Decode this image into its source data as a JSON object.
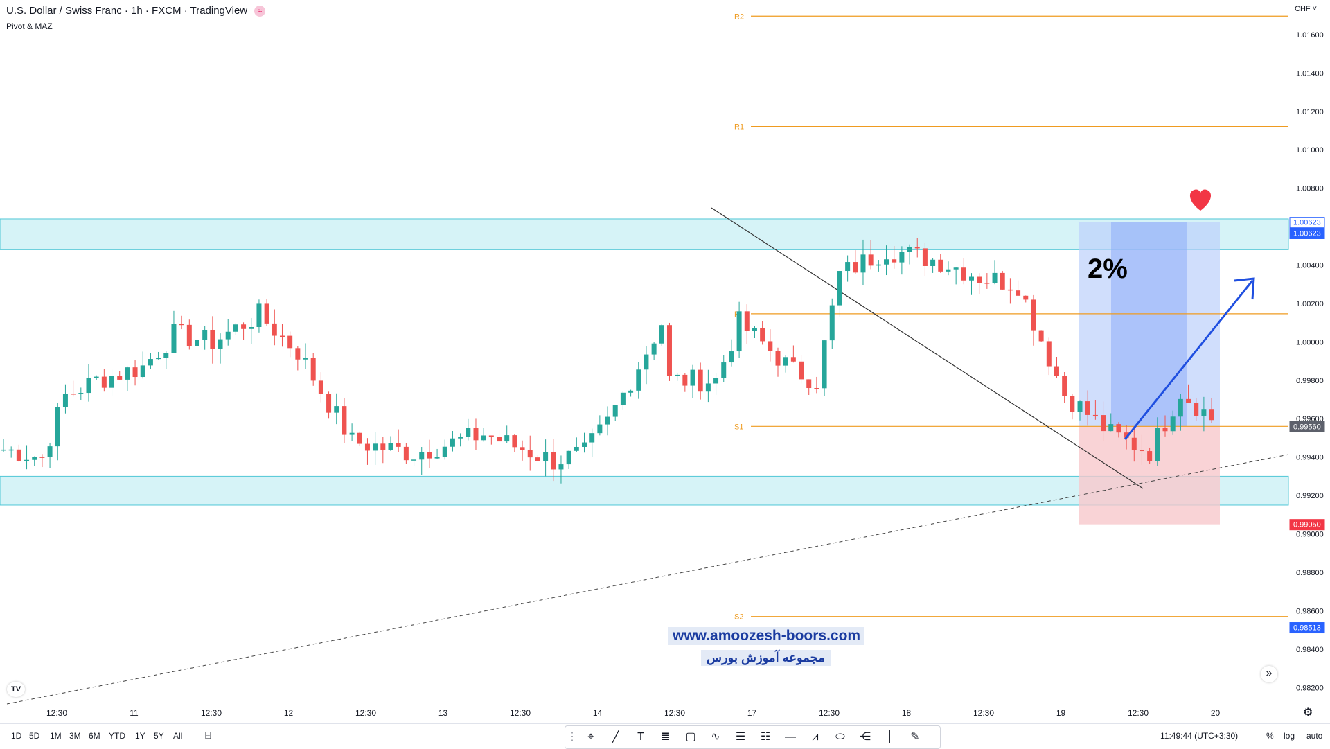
{
  "header": {
    "title": "U.S. Dollar / Swiss Franc · 1h · FXCM · TradingView",
    "indicator": "Pivot & MAZ",
    "currency": "CHF"
  },
  "colors": {
    "up": "#26a69a",
    "down": "#ef5350",
    "pivot": "#ef9b20",
    "zone": "#b2ebf2",
    "target": "#2962ff",
    "stop": "#f23645",
    "arrow": "#1f4fe0"
  },
  "chart_data": {
    "type": "candlestick",
    "y_axis": {
      "min": 0.981,
      "max": 1.0178,
      "ticks": [
        "1.01600",
        "1.01400",
        "1.01200",
        "1.01000",
        "1.00800",
        "1.00600",
        "1.00400",
        "1.00200",
        "1.00000",
        "0.99800",
        "0.99600",
        "0.99400",
        "0.99200",
        "0.99000",
        "0.98800",
        "0.98600",
        "0.98400",
        "0.98200"
      ],
      "scale": "linear"
    },
    "x_axis": {
      "labels": [
        "12:30",
        "11",
        "12:30",
        "12",
        "12:30",
        "13",
        "12:30",
        "14",
        "12:30",
        "17",
        "12:30",
        "18",
        "12:30",
        "19",
        "12:30",
        "20"
      ],
      "bars_visible": 176
    },
    "price_badges": [
      {
        "label": "1.00623",
        "value": 1.00623,
        "style": "outline"
      },
      {
        "label": "1.00623",
        "value": 1.00566,
        "style": "blue"
      },
      {
        "label": "0.99560",
        "value": 0.9956,
        "style": "gray"
      },
      {
        "label": "0.99050",
        "value": 0.9905,
        "style": "red"
      },
      {
        "label": "0.98513",
        "value": 0.98513,
        "style": "blue"
      }
    ],
    "pivots": [
      {
        "label": "R2",
        "value": 1.01696
      },
      {
        "label": "R1",
        "value": 1.01121
      },
      {
        "label": "P",
        "value": 1.00146
      },
      {
        "label": "S1",
        "value": 0.9956
      },
      {
        "label": "S2",
        "value": 0.9857
      }
    ],
    "zones": [
      {
        "from": 1.0048,
        "to": 1.0064
      },
      {
        "from": 0.9915,
        "to": 0.993
      }
    ],
    "position": {
      "entry": 0.9956,
      "target": 1.00623,
      "stop": 0.9905,
      "label": "2%"
    },
    "annotations": [
      "heart",
      "up-arrow",
      "descending-trendline",
      "ascending-dashed-trendline"
    ]
  },
  "watermark": {
    "url": "www.amoozesh-boors.com",
    "name": "مجموعه آموزش بورس"
  },
  "bottom": {
    "ranges": [
      "1D",
      "5D",
      "1M",
      "3M",
      "6M",
      "YTD",
      "1Y",
      "5Y",
      "All"
    ],
    "time": "11:49:44 (UTC+3:30)",
    "options": [
      "%",
      "log",
      "auto"
    ]
  }
}
